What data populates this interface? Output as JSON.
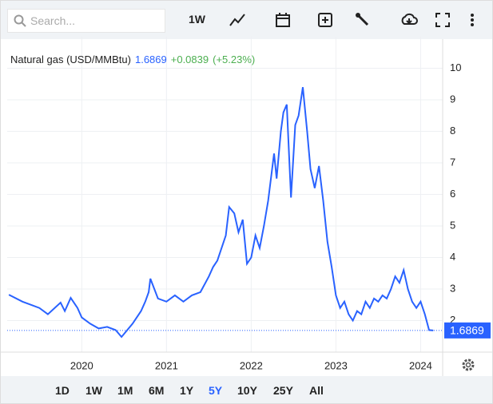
{
  "toolbar": {
    "search_placeholder": "Search...",
    "interval": "1W"
  },
  "ranges": [
    "1D",
    "1W",
    "1M",
    "6M",
    "1Y",
    "5Y",
    "10Y",
    "25Y",
    "All"
  ],
  "active_range": 5,
  "chart_data": {
    "type": "line",
    "title": "Natural gas (USD/MMBtu)",
    "last_value": 1.6869,
    "change_label": "+0.0839",
    "change_pct_label": "(+5.23%)",
    "x": [
      2019.14,
      2019.3,
      2019.5,
      2019.6,
      2019.75,
      2019.8,
      2019.87,
      2019.95,
      2020.0,
      2020.1,
      2020.2,
      2020.3,
      2020.4,
      2020.47,
      2020.6,
      2020.7,
      2020.75,
      2020.79,
      2020.81,
      2020.9,
      2021.0,
      2021.1,
      2021.2,
      2021.3,
      2021.4,
      2021.5,
      2021.55,
      2021.6,
      2021.7,
      2021.74,
      2021.8,
      2021.85,
      2021.9,
      2021.95,
      2022.0,
      2022.05,
      2022.1,
      2022.15,
      2022.2,
      2022.27,
      2022.3,
      2022.35,
      2022.38,
      2022.42,
      2022.47,
      2022.52,
      2022.56,
      2022.61,
      2022.66,
      2022.7,
      2022.75,
      2022.8,
      2022.85,
      2022.9,
      2022.95,
      2023.0,
      2023.05,
      2023.1,
      2023.15,
      2023.2,
      2023.25,
      2023.3,
      2023.35,
      2023.4,
      2023.45,
      2023.5,
      2023.55,
      2023.6,
      2023.65,
      2023.7,
      2023.75,
      2023.8,
      2023.85,
      2023.9,
      2023.95,
      2024.0,
      2024.05,
      2024.1,
      2024.15
    ],
    "series": [
      {
        "name": "Natural gas",
        "color": "#2962ff",
        "values": [
          2.82,
          2.6,
          2.4,
          2.2,
          2.57,
          2.3,
          2.72,
          2.4,
          2.1,
          1.9,
          1.75,
          1.8,
          1.7,
          1.48,
          1.9,
          2.3,
          2.6,
          2.9,
          3.33,
          2.7,
          2.6,
          2.8,
          2.6,
          2.8,
          2.9,
          3.4,
          3.7,
          3.9,
          4.7,
          5.6,
          5.4,
          4.8,
          5.2,
          3.8,
          4.0,
          4.7,
          4.3,
          5.0,
          5.8,
          7.3,
          6.5,
          8.0,
          8.6,
          8.85,
          5.9,
          8.2,
          8.5,
          9.4,
          8.0,
          6.8,
          6.2,
          6.9,
          5.8,
          4.5,
          3.7,
          2.8,
          2.4,
          2.6,
          2.2,
          2.0,
          2.3,
          2.2,
          2.6,
          2.4,
          2.7,
          2.6,
          2.8,
          2.7,
          3.0,
          3.4,
          3.2,
          3.6,
          3.0,
          2.6,
          2.4,
          2.6,
          2.2,
          1.7,
          1.6869
        ]
      }
    ],
    "xlim": [
      2019.12,
      2024.26
    ],
    "xticks": [
      2020,
      2021,
      2022,
      2023,
      2024
    ],
    "ylim": [
      1,
      11
    ],
    "yticks": [
      2,
      3,
      4,
      5,
      6,
      7,
      8,
      9,
      10
    ],
    "grid": true
  }
}
